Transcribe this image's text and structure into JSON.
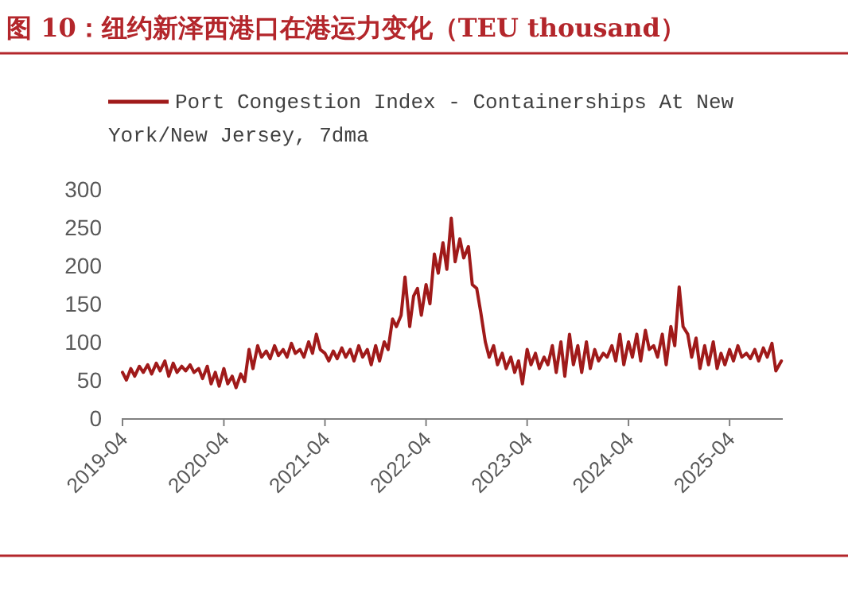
{
  "chart_data": {
    "type": "line",
    "title": "图 10：纽约新泽西港口在港运力变化（TEU thousand）",
    "legend": "top",
    "x": [
      "2019-04-01",
      "2019-04-15",
      "2019-05-01",
      "2019-05-15",
      "2019-06-01",
      "2019-06-15",
      "2019-07-01",
      "2019-07-15",
      "2019-08-01",
      "2019-08-15",
      "2019-09-01",
      "2019-09-15",
      "2019-10-01",
      "2019-10-15",
      "2019-11-01",
      "2019-11-15",
      "2019-12-01",
      "2019-12-15",
      "2020-01-01",
      "2020-01-15",
      "2020-02-01",
      "2020-02-15",
      "2020-03-01",
      "2020-03-15",
      "2020-04-01",
      "2020-04-15",
      "2020-05-01",
      "2020-05-15",
      "2020-06-01",
      "2020-06-15",
      "2020-07-01",
      "2020-07-15",
      "2020-08-01",
      "2020-08-15",
      "2020-09-01",
      "2020-09-15",
      "2020-10-01",
      "2020-10-15",
      "2020-11-01",
      "2020-11-15",
      "2020-12-01",
      "2020-12-15",
      "2021-01-01",
      "2021-01-15",
      "2021-02-01",
      "2021-02-15",
      "2021-03-01",
      "2021-03-15",
      "2021-04-01",
      "2021-04-15",
      "2021-05-01",
      "2021-05-15",
      "2021-06-01",
      "2021-06-15",
      "2021-07-01",
      "2021-07-15",
      "2021-08-01",
      "2021-08-15",
      "2021-09-01",
      "2021-09-15",
      "2021-10-01",
      "2021-10-15",
      "2021-11-01",
      "2021-11-15",
      "2021-12-01",
      "2021-12-15",
      "2022-01-01",
      "2022-01-15",
      "2022-02-01",
      "2022-02-15",
      "2022-03-01",
      "2022-03-15",
      "2022-04-01",
      "2022-04-15",
      "2022-05-01",
      "2022-05-15",
      "2022-06-01",
      "2022-06-15",
      "2022-07-01",
      "2022-07-15",
      "2022-08-01",
      "2022-08-15",
      "2022-09-01",
      "2022-09-15",
      "2022-10-01",
      "2022-10-15",
      "2022-11-01",
      "2022-11-15",
      "2022-12-01",
      "2022-12-15",
      "2023-01-01",
      "2023-01-15",
      "2023-02-01",
      "2023-02-15",
      "2023-03-01",
      "2023-03-15",
      "2023-04-01",
      "2023-04-15",
      "2023-05-01",
      "2023-05-15",
      "2023-06-01",
      "2023-06-15",
      "2023-07-01",
      "2023-07-15",
      "2023-08-01",
      "2023-08-15",
      "2023-09-01",
      "2023-09-15",
      "2023-10-01",
      "2023-10-15",
      "2023-11-01",
      "2023-11-15",
      "2023-12-01",
      "2023-12-15",
      "2024-01-01",
      "2024-01-15",
      "2024-02-01",
      "2024-02-15",
      "2024-03-01",
      "2024-03-15",
      "2024-04-01",
      "2024-04-15",
      "2024-05-01",
      "2024-05-15",
      "2024-06-01",
      "2024-06-15",
      "2024-07-01",
      "2024-07-15",
      "2024-08-01",
      "2024-08-15",
      "2024-09-01",
      "2024-09-15",
      "2024-10-01",
      "2024-10-15",
      "2024-11-01",
      "2024-11-15",
      "2024-12-01",
      "2024-12-15",
      "2025-01-01",
      "2025-01-15",
      "2025-02-01",
      "2025-02-15",
      "2025-03-01",
      "2025-03-15",
      "2025-04-01",
      "2025-04-15",
      "2025-05-01",
      "2025-05-15",
      "2025-06-01",
      "2025-06-15",
      "2025-07-01",
      "2025-07-15",
      "2025-08-01",
      "2025-08-15",
      "2025-09-01",
      "2025-09-15",
      "2025-10-05"
    ],
    "series": [
      {
        "name": "Port Congestion Index - Containerships At New York/New Jersey, 7dma",
        "color": "#a01a1a",
        "values": [
          60,
          50,
          65,
          55,
          68,
          60,
          70,
          58,
          72,
          62,
          75,
          55,
          72,
          60,
          68,
          62,
          70,
          60,
          65,
          52,
          68,
          45,
          60,
          42,
          65,
          45,
          55,
          40,
          58,
          48,
          90,
          65,
          95,
          80,
          88,
          78,
          95,
          82,
          90,
          80,
          98,
          85,
          90,
          80,
          100,
          85,
          110,
          90,
          85,
          75,
          88,
          78,
          92,
          80,
          90,
          75,
          95,
          80,
          90,
          70,
          95,
          75,
          100,
          90,
          130,
          120,
          135,
          185,
          120,
          160,
          170,
          135,
          175,
          150,
          215,
          190,
          230,
          195,
          262,
          205,
          235,
          210,
          225,
          175,
          170,
          140,
          100,
          80,
          95,
          70,
          85,
          65,
          80,
          60,
          75,
          45,
          90,
          70,
          85,
          65,
          80,
          70,
          95,
          60,
          100,
          55,
          110,
          70,
          95,
          60,
          100,
          65,
          90,
          75,
          85,
          80,
          95,
          75,
          110,
          70,
          100,
          80,
          110,
          75,
          115,
          90,
          95,
          80,
          110,
          70,
          120,
          95,
          172,
          120,
          110,
          80,
          105,
          65,
          95,
          70,
          100,
          65,
          85,
          70,
          90,
          75,
          95,
          80,
          85,
          78,
          90,
          75,
          92,
          80,
          98,
          62,
          75
        ]
      }
    ],
    "xlim": [
      "2019-04-01",
      "2025-10-10"
    ],
    "xticks": [
      "2019-04",
      "2020-04",
      "2021-04",
      "2022-04",
      "2023-04",
      "2024-04",
      "2025-04"
    ],
    "ylim": [
      0,
      300
    ],
    "yticks": [
      0,
      50,
      100,
      150,
      200,
      250,
      300
    ]
  }
}
